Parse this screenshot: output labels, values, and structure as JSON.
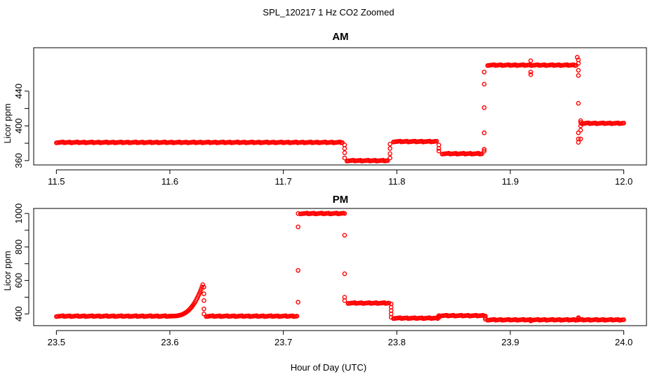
{
  "figure": {
    "title": "SPL_120217  1 Hz CO2 Zoomed",
    "xlabel": "Hour of Day (UTC)"
  },
  "colors": {
    "points": "#ff0000",
    "axes": "#000000",
    "background": "#ffffff"
  },
  "chart_data": [
    {
      "type": "scatter",
      "title": "AM",
      "xlabel": "",
      "ylabel": "Licor ppm",
      "xlim": [
        11.5,
        12.0
      ],
      "ylim": [
        355,
        490
      ],
      "x_ticks": [
        "11.5",
        "11.6",
        "11.7",
        "11.8",
        "11.9",
        "12.0"
      ],
      "y_ticks": [
        "360",
        "400",
        "440"
      ],
      "grid": false,
      "marker": "open-circle",
      "series": [
        {
          "segments": [
            {
              "x_start": 11.5,
              "x_end": 11.752,
              "y": 381
            },
            {
              "x_start": 11.756,
              "x_end": 11.792,
              "y": 360
            },
            {
              "x_start": 11.797,
              "x_end": 11.835,
              "y": 382
            },
            {
              "x_start": 11.84,
              "x_end": 11.875,
              "y": 368
            },
            {
              "x_start": 11.88,
              "x_end": 11.958,
              "y": 470
            },
            {
              "x_start": 11.963,
              "x_end": 12.0,
              "y": 403
            }
          ],
          "transitions": [
            {
              "x": 11.754,
              "y": [
                378,
                374,
                369,
                363
              ]
            },
            {
              "x": 11.794,
              "y": [
                363,
                368,
                374,
                379
              ]
            },
            {
              "x": 11.837,
              "y": [
                378,
                374,
                371
              ]
            },
            {
              "x": 11.877,
              "y": [
                371,
                373,
                392,
                421,
                448,
                462
              ]
            },
            {
              "x": 11.96,
              "y": [
                476,
                472,
                464,
                458,
                426,
                392,
                385,
                381
              ]
            },
            {
              "x": 11.962,
              "y": [
                385,
                395,
                400,
                404,
                406
              ]
            }
          ],
          "outliers": [
            {
              "x": 11.918,
              "y": 475
            },
            {
              "x": 11.918,
              "y": 459
            },
            {
              "x": 11.918,
              "y": 462
            },
            {
              "x": 11.959,
              "y": 479
            }
          ]
        }
      ]
    },
    {
      "type": "scatter",
      "title": "PM",
      "xlabel": "",
      "ylabel": "Licor ppm",
      "xlim": [
        23.5,
        24.0
      ],
      "ylim": [
        330,
        1030
      ],
      "x_ticks": [
        "23.5",
        "23.6",
        "23.7",
        "23.8",
        "23.9",
        "24.0"
      ],
      "y_ticks": [
        "400",
        "600",
        "800",
        "1000"
      ],
      "grid": false,
      "marker": "open-circle",
      "series": [
        {
          "segments": [
            {
              "x_start": 23.5,
              "x_end": 23.6,
              "y": 387
            },
            {
              "x_start": 23.632,
              "x_end": 23.712,
              "y": 387
            },
            {
              "x_start": 23.715,
              "x_end": 23.753,
              "y": 1000
            },
            {
              "x_start": 23.757,
              "x_end": 23.793,
              "y": 465
            },
            {
              "x_start": 23.797,
              "x_end": 23.836,
              "y": 375
            },
            {
              "x_start": 23.838,
              "x_end": 23.877,
              "y": 390
            },
            {
              "x_start": 23.88,
              "x_end": 24.0,
              "y": 365
            }
          ],
          "ramp": {
            "x_start": 23.6,
            "x_end": 23.629,
            "y_start": 387,
            "y_end": 575
          },
          "transitions": [
            {
              "x": 23.63,
              "y": [
                560,
                520,
                480,
                430,
                400
              ]
            },
            {
              "x": 23.713,
              "y": [
                470,
                660,
                920,
                1000
              ]
            },
            {
              "x": 23.754,
              "y": [
                1000,
                870,
                640,
                500,
                480
              ]
            },
            {
              "x": 23.795,
              "y": [
                460,
                440,
                420,
                400,
                380
              ]
            },
            {
              "x": 23.837,
              "y": [
                378,
                385,
                390
              ]
            },
            {
              "x": 23.878,
              "y": [
                388,
                378,
                368
              ]
            }
          ],
          "outliers": [
            {
              "x": 23.918,
              "y": 358
            },
            {
              "x": 23.96,
              "y": 378
            },
            {
              "x": 23.96,
              "y": 372
            }
          ]
        }
      ]
    }
  ]
}
